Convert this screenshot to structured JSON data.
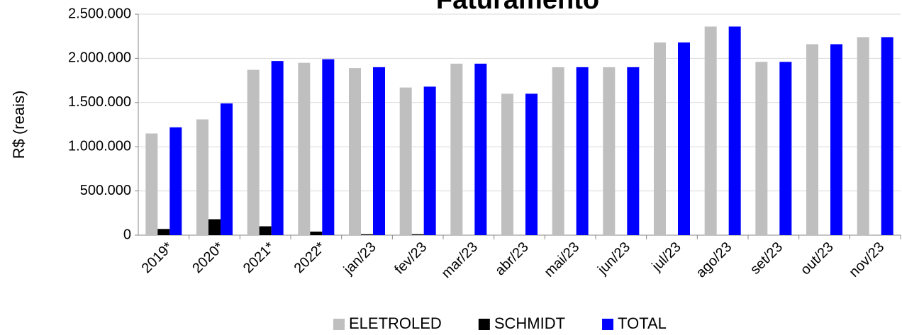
{
  "chart_data": {
    "type": "bar",
    "title": "Faturamento",
    "y_label": "R$ (reais)",
    "categories": [
      "2019*",
      "2020*",
      "2021*",
      "2022*",
      "jan/23",
      "fev/23",
      "mar/23",
      "abr/23",
      "mai/23",
      "jun/23",
      "jul/23",
      "ago/23",
      "set/23",
      "out/23",
      "nov/23"
    ],
    "series": [
      {
        "name": "ELETROLED",
        "color": "#bfbfbf",
        "values": [
          1150000,
          1310000,
          1870000,
          1950000,
          1890000,
          1670000,
          1940000,
          1600000,
          1900000,
          1900000,
          2180000,
          2360000,
          1960000,
          2160000,
          2240000
        ]
      },
      {
        "name": "SCHMIDT",
        "color": "#000000",
        "values": [
          70000,
          180000,
          100000,
          40000,
          10000,
          10000,
          0,
          0,
          0,
          0,
          0,
          0,
          0,
          0,
          0
        ]
      },
      {
        "name": "TOTAL",
        "color": "#0000ff",
        "values": [
          1220000,
          1490000,
          1970000,
          1990000,
          1900000,
          1680000,
          1940000,
          1600000,
          1900000,
          1900000,
          2180000,
          2360000,
          1960000,
          2160000,
          2240000
        ]
      }
    ],
    "ylim": [
      0,
      2500000
    ],
    "yticks": [
      0,
      {
        "value": 500000,
        "label": "500.000"
      },
      {
        "value": 1000000,
        "label": "1.000.000"
      },
      {
        "value": 1500000,
        "label": "1.500.000"
      },
      {
        "value": 2000000,
        "label": "2.000.000"
      },
      {
        "value": 2500000,
        "label": "2.500.000"
      }
    ],
    "grid": true,
    "legend": "bottom"
  }
}
